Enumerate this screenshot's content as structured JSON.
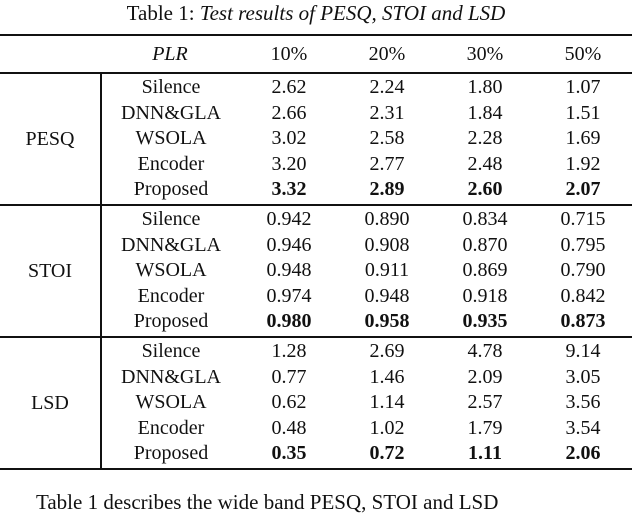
{
  "caption": {
    "prefix": "Table 1: ",
    "title": "Test results of PESQ, STOI and LSD"
  },
  "header": {
    "blank": "",
    "plr_label": "PLR",
    "columns": [
      "10%",
      "20%",
      "30%",
      "50%"
    ]
  },
  "groups": [
    {
      "metric": "PESQ",
      "rows": [
        {
          "method": "Silence",
          "values": [
            "2.62",
            "2.24",
            "1.80",
            "1.07"
          ]
        },
        {
          "method": "DNN&GLA",
          "values": [
            "2.66",
            "2.31",
            "1.84",
            "1.51"
          ]
        },
        {
          "method": "WSOLA",
          "values": [
            "3.02",
            "2.58",
            "2.28",
            "1.69"
          ]
        },
        {
          "method": "Encoder",
          "values": [
            "3.20",
            "2.77",
            "2.48",
            "1.92"
          ]
        },
        {
          "method": "Proposed",
          "values": [
            "3.32",
            "2.89",
            "2.60",
            "2.07"
          ]
        }
      ]
    },
    {
      "metric": "STOI",
      "rows": [
        {
          "method": "Silence",
          "values": [
            "0.942",
            "0.890",
            "0.834",
            "0.715"
          ]
        },
        {
          "method": "DNN&GLA",
          "values": [
            "0.946",
            "0.908",
            "0.870",
            "0.795"
          ]
        },
        {
          "method": "WSOLA",
          "values": [
            "0.948",
            "0.911",
            "0.869",
            "0.790"
          ]
        },
        {
          "method": "Encoder",
          "values": [
            "0.974",
            "0.948",
            "0.918",
            "0.842"
          ]
        },
        {
          "method": "Proposed",
          "values": [
            "0.980",
            "0.958",
            "0.935",
            "0.873"
          ]
        }
      ]
    },
    {
      "metric": "LSD",
      "rows": [
        {
          "method": "Silence",
          "values": [
            "1.28",
            "2.69",
            "4.78",
            "9.14"
          ]
        },
        {
          "method": "DNN&GLA",
          "values": [
            "0.77",
            "1.46",
            "2.09",
            "3.05"
          ]
        },
        {
          "method": "WSOLA",
          "values": [
            "0.62",
            "1.14",
            "2.57",
            "3.56"
          ]
        },
        {
          "method": "Encoder",
          "values": [
            "0.48",
            "1.02",
            "1.79",
            "3.54"
          ]
        },
        {
          "method": "Proposed",
          "values": [
            "0.35",
            "0.72",
            "1.11",
            "2.06"
          ]
        }
      ]
    }
  ],
  "paragraph": "Table 1 describes the wide band PESQ, STOI and LSD"
}
